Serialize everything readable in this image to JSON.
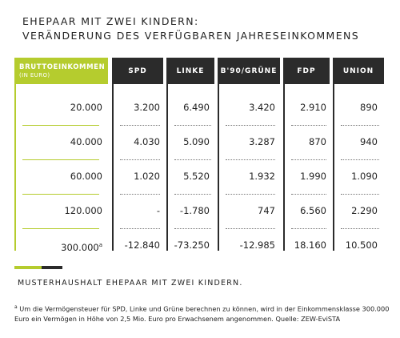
{
  "title_line1": "EHEPAAR MIT ZWEI KINDERN:",
  "title_line2": "VERÄNDERUNG DES VERFÜGBAREN JAHRESEINKOMMENS",
  "header_first_main": "BRUTTOEINKOMMEN",
  "header_first_sub": "(IN EURO)",
  "caption": "MUSTERHAUSHALT EHEPAAR MIT ZWEI KINDERN.",
  "footnote_mark": "a",
  "footnote_text": " Um die Vermögensteuer für SPD, Linke und Grüne berechnen zu können, wird in der Einkommensklasse 300.000 Euro ein Vermögen in Höhe von 2,5 Mio. Euro pro Erwachsenem angenommen. Quelle: ZEW-EviSTA",
  "colors": {
    "accent": "#b5cc2e",
    "dark": "#2b2b2b"
  },
  "chart_data": {
    "type": "table",
    "columns": [
      "SPD",
      "LINKE",
      "B'90/GRÜNE",
      "FDP",
      "UNION"
    ],
    "rows": [
      {
        "label": "20.000",
        "label_sup": "",
        "values": [
          "3.200",
          "6.490",
          "3.420",
          "2.910",
          "890"
        ]
      },
      {
        "label": "40.000",
        "label_sup": "",
        "values": [
          "4.030",
          "5.090",
          "3.287",
          "870",
          "940"
        ]
      },
      {
        "label": "60.000",
        "label_sup": "",
        "values": [
          "1.020",
          "5.520",
          "1.932",
          "1.990",
          "1.090"
        ]
      },
      {
        "label": "120.000",
        "label_sup": "",
        "values": [
          "-",
          "-1.780",
          "747",
          "6.560",
          "2.290"
        ]
      },
      {
        "label": "300.000",
        "label_sup": "a",
        "values": [
          "-12.840",
          "-73.250",
          "-12.985",
          "18.160",
          "10.500"
        ]
      }
    ]
  }
}
